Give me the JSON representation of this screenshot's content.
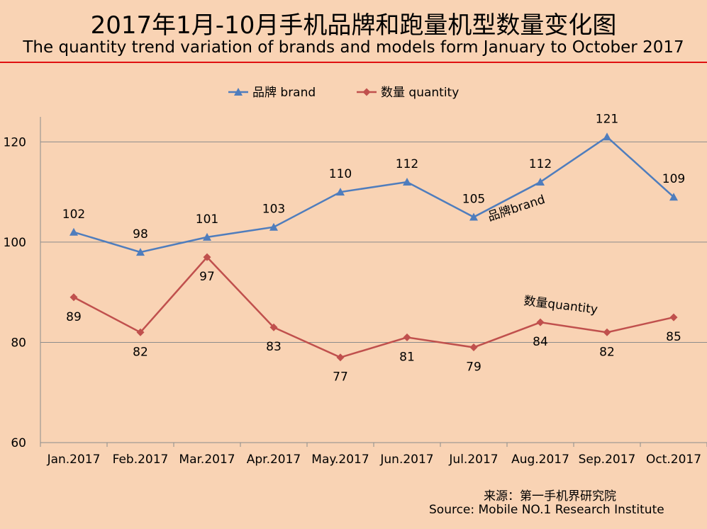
{
  "title_cn": "2017年1月-10月手机品牌和跑量机型数量变化图",
  "title_en": "The quantity trend variation of brands and models form January to October 2017",
  "source_cn": "来源：第一手机界研究院",
  "source_en": "Source: Mobile NO.1 Research Institute",
  "colors": {
    "brand": "#4f7dbd",
    "quantity": "#c0504d",
    "title_rule": "#e01010",
    "background": "#f9d3b4"
  },
  "chart_data": {
    "type": "line",
    "categories": [
      "Jan.2017",
      "Feb.2017",
      "Mar.2017",
      "Apr.2017",
      "May.2017",
      "Jun.2017",
      "Jul.2017",
      "Aug.2017",
      "Sep.2017",
      "Oct.2017"
    ],
    "series": [
      {
        "name": "品牌 brand",
        "marker": "triangle",
        "inline_label": "品牌brand",
        "values": [
          102,
          98,
          101,
          103,
          110,
          112,
          105,
          112,
          121,
          109
        ]
      },
      {
        "name": "数量 quantity",
        "marker": "diamond",
        "inline_label": "数量quantity",
        "values": [
          89,
          82,
          97,
          83,
          77,
          81,
          79,
          84,
          82,
          85
        ]
      }
    ],
    "yticks": [
      60,
      80,
      100,
      120
    ],
    "ylim": [
      60,
      125
    ],
    "grid": "horizontal",
    "legend": "top"
  }
}
